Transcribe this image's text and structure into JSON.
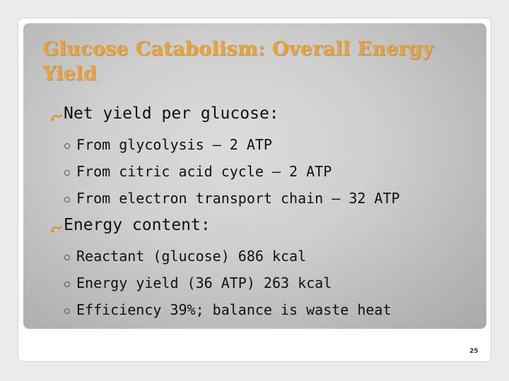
{
  "title": "Glucose Catabolism: Overall Energy Yield",
  "bullets": [
    {
      "text": "Net yield per glucose:",
      "items": [
        "From glycolysis – 2 ATP",
        "From citric acid cycle – 2 ATP",
        "From electron transport chain – 32 ATP"
      ]
    },
    {
      "text": "Energy content:",
      "items": [
        "Reactant (glucose) 686 kcal",
        "Energy yield (36 ATP) 263 kcal",
        "Efficiency 39%; balance is waste heat"
      ]
    }
  ],
  "page_number": "25"
}
